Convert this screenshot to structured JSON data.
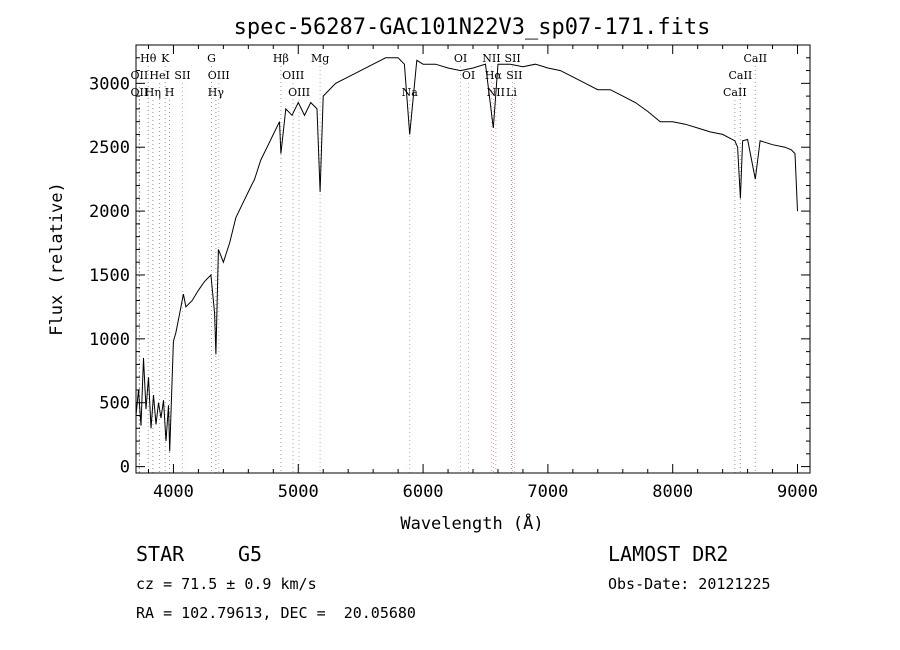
{
  "chart_data": {
    "type": "line",
    "title": "spec-56287-GAC101N22V3_sp07-171.fits",
    "xlabel": "Wavelength (Å)",
    "ylabel": "Flux (relative)",
    "xlim": [
      3700,
      9100
    ],
    "ylim": [
      -50,
      3300
    ],
    "x_ticks": [
      4000,
      5000,
      6000,
      7000,
      8000,
      9000
    ],
    "y_ticks": [
      0,
      500,
      1000,
      1500,
      2000,
      2500,
      3000
    ],
    "grid": false,
    "series": [
      {
        "points": [
          [
            3700,
            400
          ],
          [
            3720,
            600
          ],
          [
            3740,
            320
          ],
          [
            3760,
            850
          ],
          [
            3780,
            450
          ],
          [
            3800,
            700
          ],
          [
            3820,
            300
          ],
          [
            3840,
            560
          ],
          [
            3860,
            330
          ],
          [
            3880,
            500
          ],
          [
            3900,
            380
          ],
          [
            3920,
            520
          ],
          [
            3940,
            200
          ],
          [
            3960,
            480
          ],
          [
            3970,
            120
          ],
          [
            3990,
            700
          ],
          [
            4000,
            980
          ],
          [
            4020,
            1050
          ],
          [
            4050,
            1200
          ],
          [
            4080,
            1350
          ],
          [
            4100,
            1250
          ],
          [
            4150,
            1300
          ],
          [
            4200,
            1380
          ],
          [
            4250,
            1450
          ],
          [
            4300,
            1500
          ],
          [
            4330,
            1200
          ],
          [
            4340,
            880
          ],
          [
            4360,
            1700
          ],
          [
            4400,
            1600
          ],
          [
            4450,
            1750
          ],
          [
            4500,
            1950
          ],
          [
            4550,
            2050
          ],
          [
            4600,
            2150
          ],
          [
            4650,
            2250
          ],
          [
            4700,
            2400
          ],
          [
            4750,
            2500
          ],
          [
            4800,
            2600
          ],
          [
            4850,
            2700
          ],
          [
            4861,
            2450
          ],
          [
            4900,
            2800
          ],
          [
            4950,
            2750
          ],
          [
            5000,
            2850
          ],
          [
            5050,
            2750
          ],
          [
            5100,
            2850
          ],
          [
            5150,
            2800
          ],
          [
            5175,
            2150
          ],
          [
            5200,
            2900
          ],
          [
            5300,
            3000
          ],
          [
            5400,
            3050
          ],
          [
            5500,
            3100
          ],
          [
            5600,
            3150
          ],
          [
            5700,
            3200
          ],
          [
            5800,
            3200
          ],
          [
            5850,
            3150
          ],
          [
            5893,
            2600
          ],
          [
            5950,
            3180
          ],
          [
            6000,
            3150
          ],
          [
            6100,
            3150
          ],
          [
            6200,
            3120
          ],
          [
            6300,
            3100
          ],
          [
            6400,
            3120
          ],
          [
            6500,
            3150
          ],
          [
            6563,
            2650
          ],
          [
            6600,
            3150
          ],
          [
            6700,
            3150
          ],
          [
            6800,
            3130
          ],
          [
            6900,
            3150
          ],
          [
            7000,
            3120
          ],
          [
            7100,
            3100
          ],
          [
            7200,
            3050
          ],
          [
            7300,
            3000
          ],
          [
            7400,
            2950
          ],
          [
            7500,
            2950
          ],
          [
            7600,
            2900
          ],
          [
            7700,
            2850
          ],
          [
            7800,
            2780
          ],
          [
            7900,
            2700
          ],
          [
            8000,
            2700
          ],
          [
            8100,
            2680
          ],
          [
            8200,
            2650
          ],
          [
            8300,
            2620
          ],
          [
            8400,
            2600
          ],
          [
            8498,
            2550
          ],
          [
            8520,
            2500
          ],
          [
            8542,
            2100
          ],
          [
            8560,
            2550
          ],
          [
            8600,
            2560
          ],
          [
            8662,
            2250
          ],
          [
            8700,
            2550
          ],
          [
            8800,
            2520
          ],
          [
            8900,
            2500
          ],
          [
            8950,
            2480
          ],
          [
            8980,
            2450
          ],
          [
            9000,
            2000
          ]
        ]
      }
    ],
    "line_markers": [
      {
        "label": "Hθ",
        "x": 3798,
        "row": 1,
        "color": "#999999"
      },
      {
        "label": "K",
        "x": 3934,
        "row": 1,
        "color": "#999999"
      },
      {
        "label": "G",
        "x": 4305,
        "row": 1,
        "color": "#999999"
      },
      {
        "label": "Hβ",
        "x": 4861,
        "row": 1,
        "color": "#999999"
      },
      {
        "label": "Mg",
        "x": 5175,
        "row": 1,
        "color": "#999999"
      },
      {
        "label": "OI",
        "x": 6300,
        "row": 1,
        "color": "#999999"
      },
      {
        "label": "NII",
        "x": 6548,
        "row": 1,
        "color": "#999999"
      },
      {
        "label": "SII",
        "x": 6717,
        "row": 1,
        "color": "#999999"
      },
      {
        "label": "CaII",
        "x": 8662,
        "row": 1,
        "color": "#999999"
      },
      {
        "label": "OII",
        "x": 3727,
        "row": 2,
        "color": "#999999"
      },
      {
        "label": "HeI",
        "x": 3889,
        "row": 2,
        "color": "#999999"
      },
      {
        "label": "SII",
        "x": 4072,
        "row": 2,
        "color": "#999999"
      },
      {
        "label": "OIII",
        "x": 4363,
        "row": 2,
        "color": "#999999"
      },
      {
        "label": "OIII",
        "x": 4959,
        "row": 2,
        "color": "#999999"
      },
      {
        "label": "OI",
        "x": 6364,
        "row": 2,
        "color": "#999999"
      },
      {
        "label": "Hα",
        "x": 6563,
        "row": 2,
        "color": "#999999"
      },
      {
        "label": "SII",
        "x": 6731,
        "row": 2,
        "color": "#999999"
      },
      {
        "label": "CaII",
        "x": 8542,
        "row": 2,
        "color": "#999999"
      },
      {
        "label": "OII",
        "x": 3727,
        "row": 3,
        "color": "#999999"
      },
      {
        "label": "Hη",
        "x": 3835,
        "row": 3,
        "color": "#999999"
      },
      {
        "label": "H",
        "x": 3969,
        "row": 3,
        "color": "#999999"
      },
      {
        "label": "Hγ",
        "x": 4340,
        "row": 3,
        "color": "#999999"
      },
      {
        "label": "OIII",
        "x": 5007,
        "row": 3,
        "color": "#999999"
      },
      {
        "label": "Na",
        "x": 5893,
        "row": 3,
        "color": "#999999"
      },
      {
        "label": "NII",
        "x": 6583,
        "row": 3,
        "color": "#999999"
      },
      {
        "label": "Li",
        "x": 6708,
        "row": 3,
        "color": "#999999"
      },
      {
        "label": "CaII",
        "x": 8498,
        "row": 3,
        "color": "#999999"
      }
    ]
  },
  "info": {
    "obj_class": "STAR",
    "subclass": "G5",
    "survey": "LAMOST DR2",
    "cz": "cz = 71.5 ± 0.9 km/s",
    "obs_date": "Obs-Date: 20121225",
    "radec": "RA = 102.79613, DEC =  20.05680"
  }
}
